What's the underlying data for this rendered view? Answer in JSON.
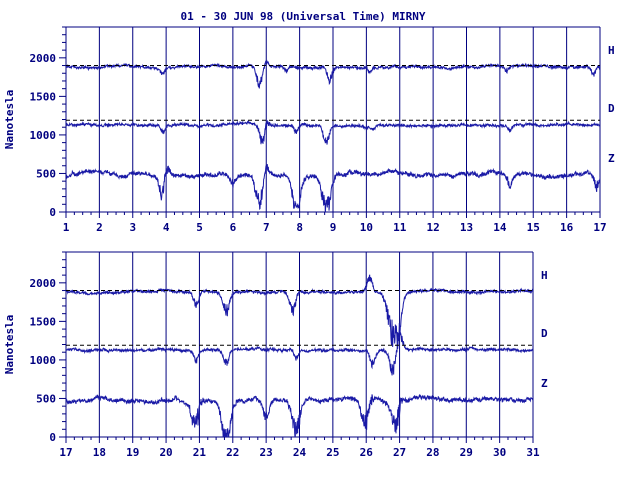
{
  "chart_data": {
    "type": "line",
    "title": "01 - 30 JUN 98 (Universal Time) MIRNY",
    "ylabel": "Nanotesla",
    "colors": {
      "trace": "#1a1aa6",
      "axis": "#000080",
      "reference": "#000000"
    },
    "panels": [
      {
        "xlim": [
          1,
          17
        ],
        "xticks": [
          1,
          2,
          3,
          4,
          5,
          6,
          7,
          8,
          9,
          10,
          11,
          12,
          13,
          14,
          15,
          16,
          17
        ],
        "ylim": [
          0,
          2400
        ],
        "yticks": [
          0,
          500,
          1000,
          1500,
          2000
        ],
        "series": [
          {
            "name": "H",
            "baseline": 1880,
            "reference": 1900,
            "disturbances": [
              [
                3.9,
                -80
              ],
              [
                6.8,
                -240
              ],
              [
                7.0,
                90
              ],
              [
                7.6,
                -60
              ],
              [
                8.9,
                -180
              ],
              [
                10.1,
                -70
              ],
              [
                14.2,
                -60
              ],
              [
                16.8,
                -120
              ]
            ]
          },
          {
            "name": "D",
            "baseline": 1130,
            "reference": 1190,
            "disturbances": [
              [
                3.9,
                -100
              ],
              [
                6.9,
                -250
              ],
              [
                7.0,
                120
              ],
              [
                7.9,
                -90
              ],
              [
                8.8,
                -250
              ],
              [
                10.2,
                -60
              ],
              [
                14.3,
                -90
              ]
            ]
          },
          {
            "name": "Z",
            "baseline": 480,
            "reference": null,
            "disturbances": [
              [
                3.9,
                -300
              ],
              [
                4.0,
                190
              ],
              [
                6.0,
                -130
              ],
              [
                6.8,
                -400
              ],
              [
                7.0,
                180
              ],
              [
                7.9,
                -420
              ],
              [
                8.8,
                -480
              ],
              [
                14.3,
                -150
              ],
              [
                16.9,
                -200
              ]
            ]
          }
        ]
      },
      {
        "xlim": [
          17,
          31
        ],
        "xticks": [
          17,
          18,
          19,
          20,
          21,
          22,
          23,
          24,
          25,
          26,
          27,
          28,
          29,
          30,
          31
        ],
        "ylim": [
          0,
          2400
        ],
        "yticks": [
          0,
          500,
          1000,
          1500,
          2000
        ],
        "series": [
          {
            "name": "H",
            "baseline": 1880,
            "reference": 1900,
            "disturbances": [
              [
                20.9,
                -200
              ],
              [
                21.8,
                -280
              ],
              [
                23.8,
                -260
              ],
              [
                26.1,
                220
              ],
              [
                26.8,
                -580
              ],
              [
                27.0,
                -300
              ]
            ]
          },
          {
            "name": "D",
            "baseline": 1130,
            "reference": 1190,
            "disturbances": [
              [
                20.9,
                -150
              ],
              [
                21.8,
                -180
              ],
              [
                23.9,
                -120
              ],
              [
                26.2,
                -200
              ],
              [
                26.8,
                -300
              ],
              [
                27.0,
                230
              ]
            ]
          },
          {
            "name": "Z",
            "baseline": 480,
            "reference": null,
            "disturbances": [
              [
                20.9,
                -450
              ],
              [
                21.0,
                200
              ],
              [
                21.8,
                -520
              ],
              [
                23.0,
                -250
              ],
              [
                23.9,
                -400
              ],
              [
                26.0,
                -460
              ],
              [
                26.1,
                240
              ],
              [
                26.9,
                -420
              ],
              [
                27.0,
                180
              ]
            ]
          }
        ]
      }
    ]
  }
}
